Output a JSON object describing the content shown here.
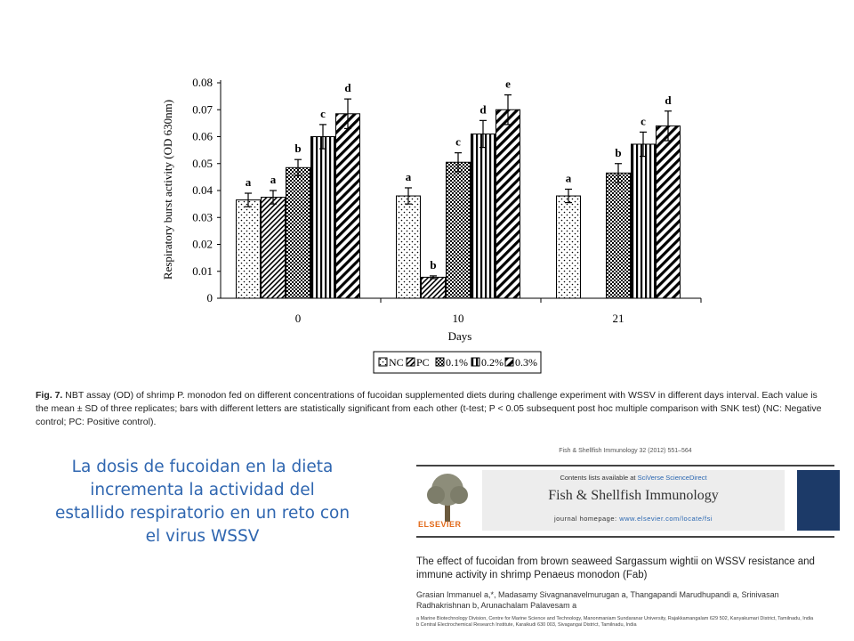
{
  "chart_data": {
    "type": "bar",
    "ylabel": "Respiratory burst activity (OD 630nm)",
    "xlabel": "Days",
    "ylim": [
      0,
      0.08
    ],
    "yticks": [
      "0",
      "0.01",
      "0.02",
      "0.03",
      "0.04",
      "0.05",
      "0.06",
      "0.07",
      "0.08"
    ],
    "categories": [
      "0",
      "10",
      "21"
    ],
    "legend_position": "bottom",
    "series": [
      {
        "name": "NC",
        "pattern": "dots",
        "values": [
          0.0365,
          0.038,
          0.038
        ],
        "errors": [
          0.0025,
          0.003,
          0.0025
        ],
        "letters": [
          "a",
          "a",
          "a"
        ]
      },
      {
        "name": "PC",
        "pattern": "diag-thin",
        "values": [
          0.0375,
          0.0078,
          0
        ],
        "errors": [
          0.0025,
          0.0005,
          0
        ],
        "letters": [
          "a",
          "b",
          ""
        ]
      },
      {
        "name": "0.1%",
        "pattern": "checker",
        "values": [
          0.0485,
          0.0505,
          0.0465
        ],
        "errors": [
          0.003,
          0.0035,
          0.0035
        ],
        "letters": [
          "b",
          "c",
          "b"
        ]
      },
      {
        "name": "0.2%",
        "pattern": "vertical",
        "values": [
          0.06,
          0.061,
          0.0572
        ],
        "errors": [
          0.0045,
          0.005,
          0.0045
        ],
        "letters": [
          "c",
          "d",
          "c"
        ]
      },
      {
        "name": "0.3%",
        "pattern": "diag-bold",
        "values": [
          0.0685,
          0.07,
          0.064
        ],
        "errors": [
          0.0055,
          0.0055,
          0.0055
        ],
        "letters": [
          "d",
          "e",
          "d"
        ]
      }
    ]
  },
  "caption": {
    "fig": "Fig. 7.",
    "text": "NBT assay (OD) of shrimp P. monodon fed on different concentrations of fucoidan supplemented diets during challenge experiment with WSSV in different days interval. Each value is the mean ± SD of three replicates; bars with different letters are statistically significant from each other (t-test; P < 0.05 subsequent post hoc multiple comparison with SNK test) (NC: Negative control; PC: Positive control)."
  },
  "slide_text": "La dosis de fucoidan en la dieta incrementa la actividad del estallido respiratorio en un reto con el virus WSSV",
  "journal": {
    "citation": "Fish & Shellfish Immunology 32 (2012) 551–564",
    "contents_prefix": "Contents lists available at ",
    "contents_link": "SciVerse ScienceDirect",
    "name": "Fish & Shellfish Immunology",
    "homepage_prefix": "journal homepage: ",
    "homepage_url": "www.elsevier.com/locate/fsi",
    "publisher": "ELSEVIER",
    "title": "The effect of fucoidan from brown seaweed Sargassum wightii on WSSV resistance and immune activity in shrimp Penaeus monodon (Fab)",
    "authors": "Grasian Immanuel a,*, Madasamy Sivagnanavelmurugan a, Thangapandi Marudhupandi a, Srinivasan Radhakrishnan b, Arunachalam Palavesam a",
    "aff_a": "a Marine Biotechnology Division, Centre for Marine Science and Technology, Manonmaniam Sundaranar University, Rajakkamangalam 629 502, Kanyakumari District, Tamilnadu, India",
    "aff_b": "b Central Electrochemical Research Institute, Karaikudi 630 003, Sivagangai District, Tamilnadu, India"
  }
}
